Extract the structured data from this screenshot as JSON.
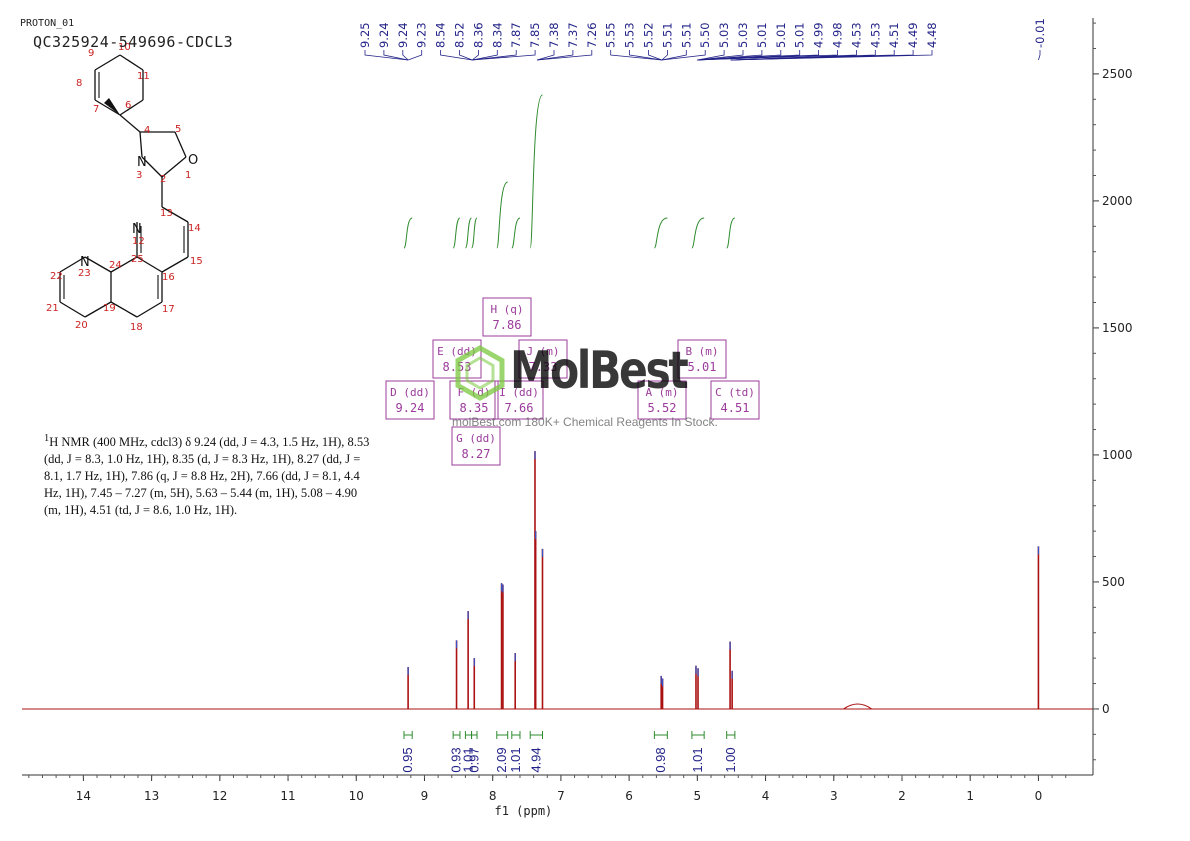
{
  "header": {
    "experiment": "PROTON_01",
    "sample": "QC325924-549696-CDCL3"
  },
  "nmr_description": {
    "prefix_sup": "1",
    "text": "H NMR (400 MHz, cdcl3) δ 9.24 (dd, J = 4.3, 1.5 Hz, 1H), 8.53 (dd, J = 8.3, 1.0 Hz, 1H), 8.35 (d, J = 8.3 Hz, 1H), 8.27 (dd, J = 8.1, 1.7 Hz, 1H), 7.86 (q, J = 8.8 Hz, 2H), 7.66 (dd, J = 8.1, 4.4 Hz, 1H), 7.45 – 7.27 (m, 5H), 5.63 – 5.44 (m, 1H), 5.08 – 4.90 (m, 1H), 4.51 (td, J = 8.6, 1.0 Hz, 1H)."
  },
  "watermark": {
    "brand": "MolBest",
    "tagline": "molBest.com 180K+ Chemical Reagents In Stock."
  },
  "structure_labels": [
    "10",
    "9",
    "11",
    "8",
    "7",
    "6",
    "5",
    "4",
    "O",
    "1",
    "N",
    "3",
    "2",
    "13",
    "14",
    "N",
    "12",
    "15",
    "22",
    "N",
    "23",
    "24",
    "25",
    "16",
    "21",
    "19",
    "17",
    "20",
    "18"
  ],
  "chart_data": {
    "type": "line",
    "title": "",
    "xlabel": "f1 (ppm)",
    "y2label": "",
    "xlim": [
      14.9,
      -0.8
    ],
    "ylim": [
      -260,
      2720
    ],
    "x_reversed": true,
    "xticks": [
      14,
      13,
      12,
      11,
      10,
      9,
      8,
      7,
      6,
      5,
      4,
      3,
      2,
      1,
      0
    ],
    "yticks": [
      0,
      500,
      1000,
      1500,
      2000,
      2500
    ],
    "line_color": "#aa1111",
    "integral_color": "#2e8b2e",
    "peak_label_color": "#222288",
    "multiplet_color": "#9b3b9b",
    "peaks": [
      {
        "ppm": 9.24,
        "height": 165
      },
      {
        "ppm": 8.53,
        "height": 270
      },
      {
        "ppm": 8.36,
        "height": 385
      },
      {
        "ppm": 8.27,
        "height": 200
      },
      {
        "ppm": 7.87,
        "height": 495
      },
      {
        "ppm": 7.85,
        "height": 490
      },
      {
        "ppm": 7.67,
        "height": 220
      },
      {
        "ppm": 7.38,
        "height": 1015
      },
      {
        "ppm": 7.37,
        "height": 700
      },
      {
        "ppm": 7.27,
        "height": 630
      },
      {
        "ppm": 5.53,
        "height": 130
      },
      {
        "ppm": 5.51,
        "height": 120
      },
      {
        "ppm": 5.02,
        "height": 170
      },
      {
        "ppm": 4.99,
        "height": 160
      },
      {
        "ppm": 4.52,
        "height": 265
      },
      {
        "ppm": 4.49,
        "height": 150
      },
      {
        "ppm": 0.0,
        "height": 640
      },
      {
        "ppm": 2.65,
        "height": 15
      }
    ],
    "peak_labels": [
      "9.25",
      "9.24",
      "9.24",
      "9.23",
      "8.54",
      "8.52",
      "8.36",
      "8.34",
      "7.87",
      "7.85",
      "7.38",
      "7.37",
      "7.26",
      "5.55",
      "5.53",
      "5.52",
      "5.51",
      "5.51",
      "5.50",
      "5.03",
      "5.03",
      "5.01",
      "5.01",
      "5.01",
      "4.99",
      "4.98",
      "4.53",
      "4.53",
      "4.51",
      "4.49",
      "4.48",
      "-0.01"
    ],
    "multiplets": [
      {
        "letter": "D",
        "type": "dd",
        "shift": "9.24"
      },
      {
        "letter": "E",
        "type": "dd",
        "shift": "8.53"
      },
      {
        "letter": "F",
        "type": "d",
        "shift": "8.35"
      },
      {
        "letter": "G",
        "type": "dd",
        "shift": "8.27"
      },
      {
        "letter": "H",
        "type": "q",
        "shift": "7.86"
      },
      {
        "letter": "I",
        "type": "dd",
        "shift": "7.66"
      },
      {
        "letter": "J",
        "type": "m",
        "shift": "7.33"
      },
      {
        "letter": "A",
        "type": "m",
        "shift": "5.52"
      },
      {
        "letter": "B",
        "type": "m",
        "shift": "5.01"
      },
      {
        "letter": "C",
        "type": "td",
        "shift": "4.51"
      }
    ],
    "integrals": [
      {
        "from": 9.3,
        "to": 9.18,
        "value": "0.95"
      },
      {
        "from": 8.58,
        "to": 8.48,
        "value": "0.93"
      },
      {
        "from": 8.4,
        "to": 8.31,
        "value": "1.01"
      },
      {
        "from": 8.31,
        "to": 8.23,
        "value": "0.97"
      },
      {
        "from": 7.94,
        "to": 7.78,
        "value": "2.09"
      },
      {
        "from": 7.72,
        "to": 7.6,
        "value": "1.01"
      },
      {
        "from": 7.45,
        "to": 7.27,
        "value": "4.94"
      },
      {
        "from": 5.63,
        "to": 5.44,
        "value": "0.98"
      },
      {
        "from": 5.08,
        "to": 4.9,
        "value": "1.01"
      },
      {
        "from": 4.57,
        "to": 4.45,
        "value": "1.00"
      }
    ]
  }
}
